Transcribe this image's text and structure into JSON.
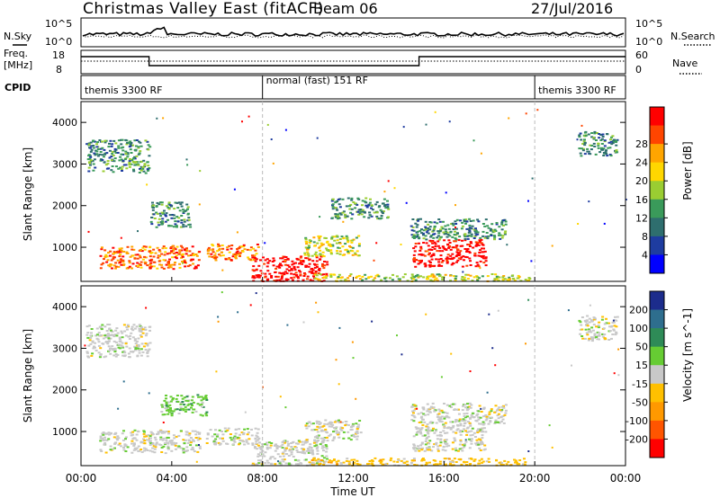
{
  "header": {
    "title": "Christmas Valley East (fitACF)",
    "beam": "Beam 06",
    "date": "27/Jul/2016"
  },
  "noise_panel": {
    "left_label": "N.Sky",
    "left_ticks": [
      "10^5",
      "10^0"
    ],
    "right_label": "N.Search",
    "right_ticks": [
      "10^5",
      "10^0"
    ]
  },
  "freq_panel": {
    "left_label_1": "Freq.",
    "left_label_2": "[MHz]",
    "left_ticks": [
      "18",
      "8"
    ],
    "right_label": "Nave",
    "right_ticks": [
      "60",
      "0"
    ]
  },
  "cpid_panel": {
    "label": "CPID",
    "segments": [
      {
        "start_hour": 0,
        "end_hour": 8,
        "text": "themis 3300 RF"
      },
      {
        "start_hour": 8,
        "end_hour": 20,
        "text": "normal (fast) 151 RF"
      },
      {
        "start_hour": 20,
        "end_hour": 24,
        "text": "themis 3300 RF"
      }
    ]
  },
  "chart_data": [
    {
      "type": "heatmap",
      "name": "power",
      "xlabel": "Time UT",
      "ylabel": "Slant Range [km]",
      "xlim": [
        0,
        24
      ],
      "ylim": [
        180,
        4500
      ],
      "xticks": [
        {
          "hour": 0,
          "label": "00:00"
        },
        {
          "hour": 4,
          "label": "04:00"
        },
        {
          "hour": 8,
          "label": "08:00"
        },
        {
          "hour": 12,
          "label": "12:00"
        },
        {
          "hour": 16,
          "label": "16:00"
        },
        {
          "hour": 20,
          "label": "20:00"
        },
        {
          "hour": 24,
          "label": "00:00"
        }
      ],
      "yticks": [
        1000,
        2000,
        3000,
        4000
      ],
      "colorbar": {
        "label": "Power [dB]",
        "range": [
          0,
          32
        ],
        "tick_labels": [
          "4",
          "8",
          "12",
          "16",
          "20",
          "24",
          "28"
        ],
        "colors": [
          "#0000ff",
          "#1e3ca0",
          "#2e6e6e",
          "#3a9a5a",
          "#9acd32",
          "#ffd700",
          "#ffa500",
          "#ff4500",
          "#ff0000"
        ]
      },
      "regions": [
        {
          "t0": 0.2,
          "t1": 3.0,
          "r0": 2800,
          "r1": 3600,
          "level": 3
        },
        {
          "t0": 0.8,
          "t1": 5.2,
          "r0": 500,
          "r1": 1050,
          "level": 7
        },
        {
          "t0": 3.0,
          "t1": 4.8,
          "r0": 1500,
          "r1": 2100,
          "level": 3
        },
        {
          "t0": 5.5,
          "t1": 7.8,
          "r0": 700,
          "r1": 1100,
          "level": 7
        },
        {
          "t0": 7.5,
          "t1": 10.8,
          "r0": 200,
          "r1": 800,
          "level": 9
        },
        {
          "t0": 9.8,
          "t1": 12.3,
          "r0": 800,
          "r1": 1300,
          "level": 5
        },
        {
          "t0": 11.0,
          "t1": 13.5,
          "r0": 1700,
          "r1": 2200,
          "level": 3
        },
        {
          "t0": 14.6,
          "t1": 17.8,
          "r0": 550,
          "r1": 1200,
          "level": 9
        },
        {
          "t0": 14.5,
          "t1": 18.7,
          "r0": 1200,
          "r1": 1700,
          "level": 3
        },
        {
          "t0": 10.0,
          "t1": 19.8,
          "r0": 200,
          "r1": 380,
          "level": 5
        },
        {
          "t0": 21.9,
          "t1": 23.6,
          "r0": 3200,
          "r1": 3800,
          "level": 3
        }
      ]
    },
    {
      "type": "heatmap",
      "name": "velocity",
      "xlabel": "Time UT",
      "ylabel": "Slant Range [km]",
      "xlim": [
        0,
        24
      ],
      "ylim": [
        180,
        4500
      ],
      "xticks": [
        {
          "hour": 0,
          "label": "00:00"
        },
        {
          "hour": 4,
          "label": "04:00"
        },
        {
          "hour": 8,
          "label": "08:00"
        },
        {
          "hour": 12,
          "label": "12:00"
        },
        {
          "hour": 16,
          "label": "16:00"
        },
        {
          "hour": 20,
          "label": "20:00"
        },
        {
          "hour": 24,
          "label": "00:00"
        }
      ],
      "yticks": [
        1000,
        2000,
        3000,
        4000
      ],
      "colorbar": {
        "label": "Velocity [m s^-1]",
        "tick_labels": [
          "200",
          "100",
          "50",
          "15",
          "-15",
          "-50",
          "-100",
          "-200"
        ],
        "colors": [
          "#1c2c8c",
          "#2e6e8e",
          "#2e8b57",
          "#66cc33",
          "#c8c8c8",
          "#ffc000",
          "#ff9900",
          "#ff5500",
          "#ff0000"
        ]
      },
      "regions": [
        {
          "t0": 0.2,
          "t1": 3.0,
          "r0": 2800,
          "r1": 3600,
          "level": 4
        },
        {
          "t0": 0.8,
          "t1": 5.2,
          "r0": 500,
          "r1": 1050,
          "level": 4
        },
        {
          "t0": 3.5,
          "t1": 5.5,
          "r0": 1400,
          "r1": 1900,
          "level": 3
        },
        {
          "t0": 5.5,
          "t1": 7.8,
          "r0": 700,
          "r1": 1100,
          "level": 4
        },
        {
          "t0": 7.5,
          "t1": 10.8,
          "r0": 200,
          "r1": 800,
          "level": 4
        },
        {
          "t0": 9.8,
          "t1": 12.3,
          "r0": 800,
          "r1": 1300,
          "level": 4
        },
        {
          "t0": 14.6,
          "t1": 17.8,
          "r0": 550,
          "r1": 1200,
          "level": 4
        },
        {
          "t0": 14.5,
          "t1": 18.7,
          "r0": 1200,
          "r1": 1700,
          "level": 4
        },
        {
          "t0": 10.0,
          "t1": 19.8,
          "r0": 200,
          "r1": 380,
          "level": 5
        },
        {
          "t0": 21.9,
          "t1": 23.6,
          "r0": 3200,
          "r1": 3800,
          "level": 4
        }
      ]
    }
  ]
}
